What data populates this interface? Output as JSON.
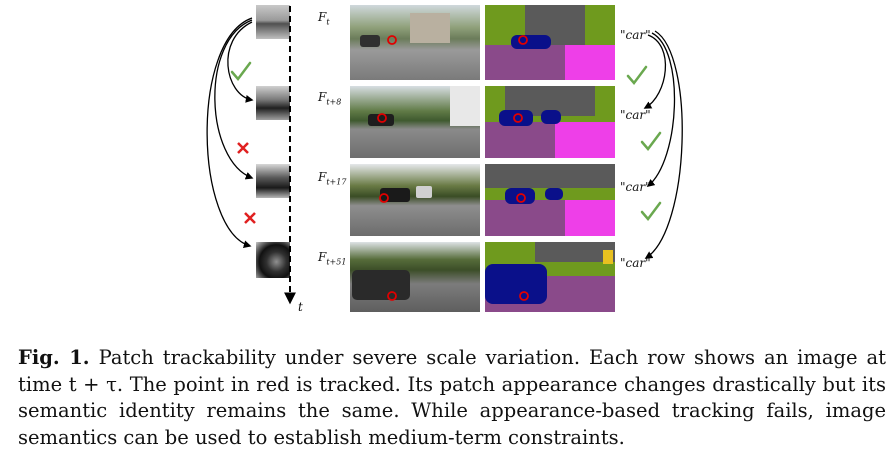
{
  "figure": {
    "frames": [
      {
        "label_base": "F",
        "label_sub": "t",
        "semantic": "\"car\""
      },
      {
        "label_base": "F",
        "label_sub": "t+8",
        "semantic": "\"car\""
      },
      {
        "label_base": "F",
        "label_sub": "t+17",
        "semantic": "\"car\""
      },
      {
        "label_base": "F",
        "label_sub": "t+51",
        "semantic": "\"car\""
      }
    ],
    "time_axis_label": "t",
    "appearance_tracking": [
      "check",
      "cross",
      "cross"
    ],
    "semantic_tracking": [
      "check",
      "check",
      "check"
    ],
    "colors": {
      "check": "#6aa84f",
      "cross": "#e02020",
      "point": "#e00000",
      "seg_car": "#0a108a",
      "seg_road": "#8a4a8a",
      "seg_sidewalk": "#ee3fe8",
      "seg_vegetation": "#6f9a1e",
      "seg_building": "#5a5a5a"
    }
  },
  "caption": {
    "label": "Fig. 1.",
    "text": "Patch trackability under severe scale variation. Each row shows an image at time t + τ. The point in red is tracked. Its patch appearance changes drastically but its semantic identity remains the same. While appearance-based tracking fails, image semantics can be used to establish medium-term constraints."
  }
}
